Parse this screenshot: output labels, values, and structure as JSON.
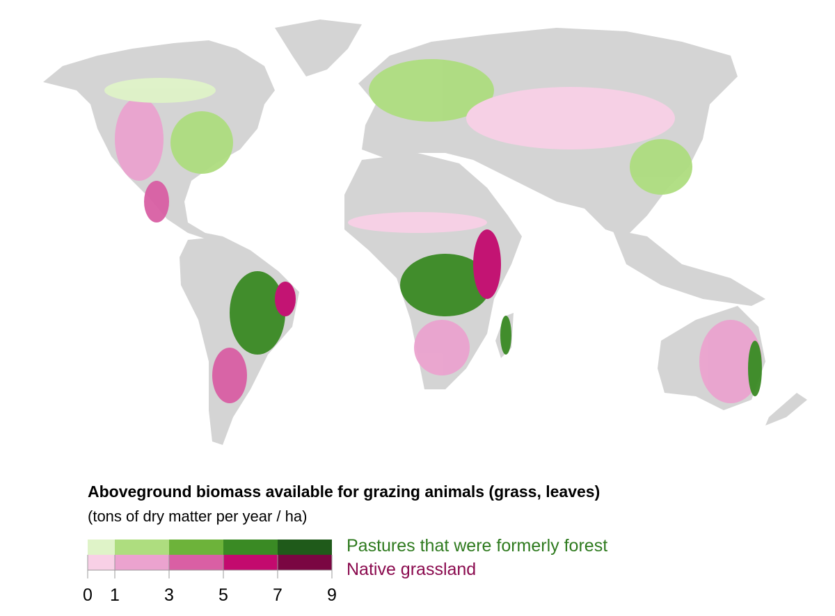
{
  "legend": {
    "title": "Aboveground biomass available for grazing animals (grass, leaves)",
    "subtitle": "(tons of dry matter per year / ha)",
    "breaks": [
      0,
      1,
      3,
      5,
      7,
      9
    ],
    "tick_labels": [
      "0",
      "1",
      "3",
      "5",
      "7",
      "9"
    ],
    "series": [
      {
        "name": "Pastures that were formerly forest",
        "label_color": "#2e7a1e",
        "colors": [
          "#dff3c8",
          "#aedd7f",
          "#6db33a",
          "#3a8a24",
          "#1f5a1a"
        ]
      },
      {
        "name": "Native grassland",
        "label_color": "#8a0a4e",
        "colors": [
          "#f8d0e6",
          "#eba3cf",
          "#d95fa4",
          "#c30a6e",
          "#7a0642"
        ]
      }
    ]
  },
  "map": {
    "land_color": "#d4d4d4",
    "background": "#ffffff"
  }
}
